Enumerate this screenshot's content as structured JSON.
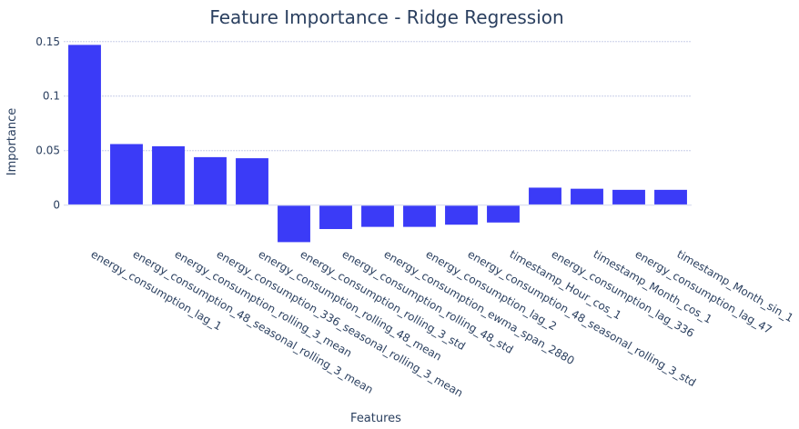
{
  "chart_data": {
    "type": "bar",
    "title": "Feature Importance - Ridge Regression",
    "xlabel": "Features",
    "ylabel": "Importance",
    "ylim": [
      -0.037,
      0.154
    ],
    "yticks": [
      0,
      0.05,
      0.1,
      0.15
    ],
    "ytick_labels": [
      "0",
      "0.05",
      "0.1",
      "0.15"
    ],
    "grid": true,
    "bar_color": "#3b3bf7",
    "categories": [
      "energy_consumption_lag_1",
      "energy_consumption_48_seasonal_rolling_3_mean",
      "energy_consumption_rolling_3_mean",
      "energy_consumption_336_seasonal_rolling_3_mean",
      "energy_consumption_rolling_48_mean",
      "energy_consumption_rolling_3_std",
      "energy_consumption_rolling_48_std",
      "energy_consumption_ewma_span_2880",
      "energy_consumption_lag_2",
      "energy_consumption_48_seasonal_rolling_3_std",
      "timestamp_Hour_cos_1",
      "energy_consumption_lag_336",
      "timestamp_Month_cos_1",
      "energy_consumption_lag_47",
      "timestamp_Month_sin_1"
    ],
    "values": [
      0.147,
      0.056,
      0.054,
      0.044,
      0.043,
      -0.034,
      -0.022,
      -0.02,
      -0.02,
      -0.018,
      -0.016,
      0.016,
      0.015,
      0.014,
      0.014
    ]
  }
}
